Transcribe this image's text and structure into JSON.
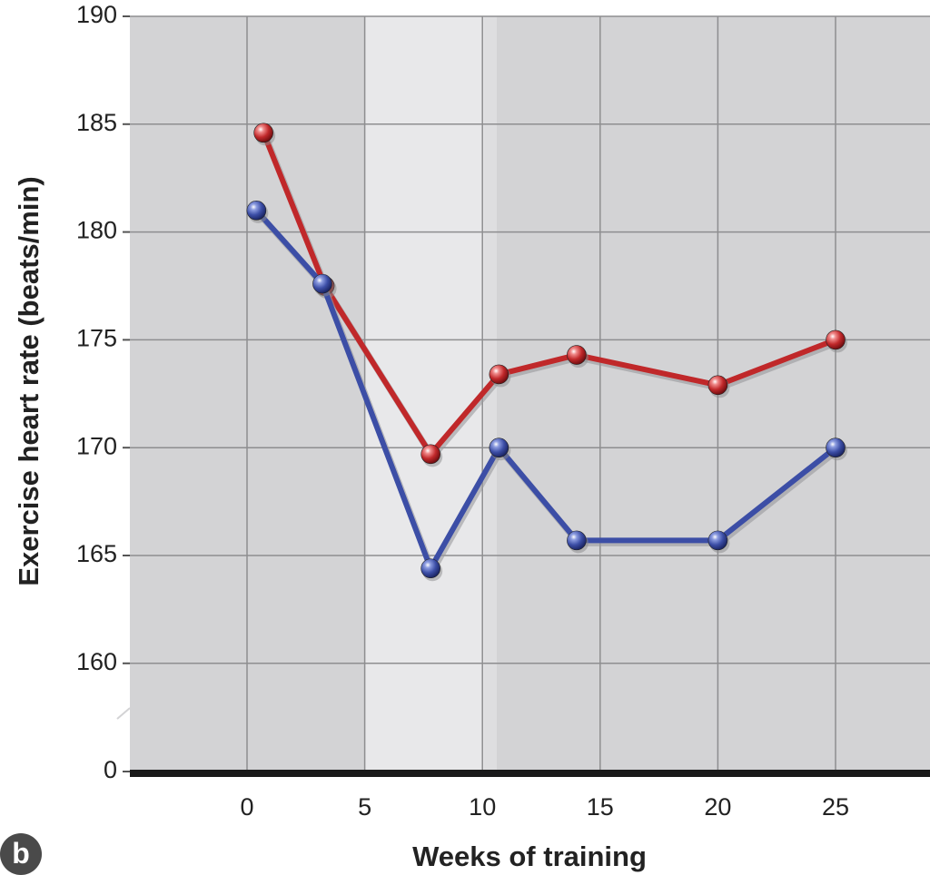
{
  "panel_label": "b",
  "chart_data": {
    "type": "line",
    "xlabel": "Weeks of training",
    "ylabel": "Exercise heart rate (beats/min)",
    "x_ticks": [
      0,
      5,
      10,
      15,
      20,
      25
    ],
    "y_ticks": [
      160,
      165,
      170,
      175,
      180,
      185,
      190
    ],
    "y_zero_label": "0",
    "y_axis_break": true,
    "xlim": [
      -5,
      29
    ],
    "ylim": [
      156,
      190
    ],
    "grid": true,
    "highlight_band": [
      5,
      10.6
    ],
    "series": [
      {
        "color": "#c0282a",
        "x": [
          0.7,
          3.3,
          7.8,
          10.7,
          14.0,
          20.0,
          25.0
        ],
        "y": [
          184.6,
          177.5,
          169.7,
          173.4,
          174.3,
          172.9,
          175.0
        ]
      },
      {
        "color": "#3c4ea6",
        "x": [
          0.4,
          3.2,
          7.8,
          10.7,
          14.0,
          20.0,
          25.0
        ],
        "y": [
          181.0,
          177.6,
          164.4,
          170.0,
          165.7,
          165.7,
          170.0
        ]
      }
    ]
  }
}
